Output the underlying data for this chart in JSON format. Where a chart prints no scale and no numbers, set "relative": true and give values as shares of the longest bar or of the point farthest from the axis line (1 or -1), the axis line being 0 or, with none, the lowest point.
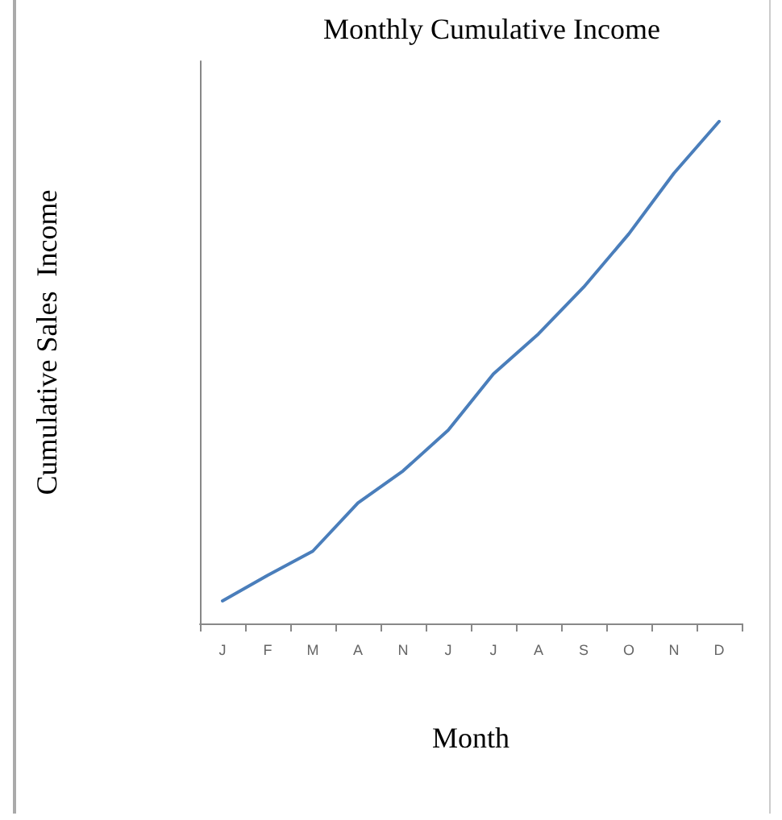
{
  "chart_data": {
    "type": "line",
    "title": "Monthly Cumulative Income",
    "xlabel": "Month",
    "ylabel": "Cumulative Sales  Income",
    "categories": [
      "J",
      "F",
      "M",
      "A",
      "N",
      "J",
      "J",
      "A",
      "S",
      "O",
      "N",
      "D"
    ],
    "relative": true,
    "tick_labels": "x",
    "grid": false,
    "marker": "none",
    "line_style": "solid",
    "series": [
      {
        "color": "#4a7ebb",
        "values": [
          0.045,
          0.096,
          0.144,
          0.24,
          0.304,
          0.385,
          0.497,
          0.577,
          0.67,
          0.776,
          0.897,
          1
        ]
      }
    ]
  }
}
